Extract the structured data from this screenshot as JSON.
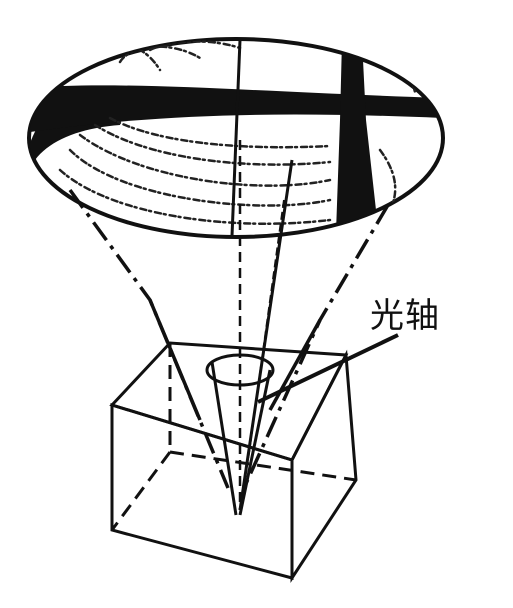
{
  "figure": {
    "labels": {
      "optic_axis": "光轴"
    }
  }
}
